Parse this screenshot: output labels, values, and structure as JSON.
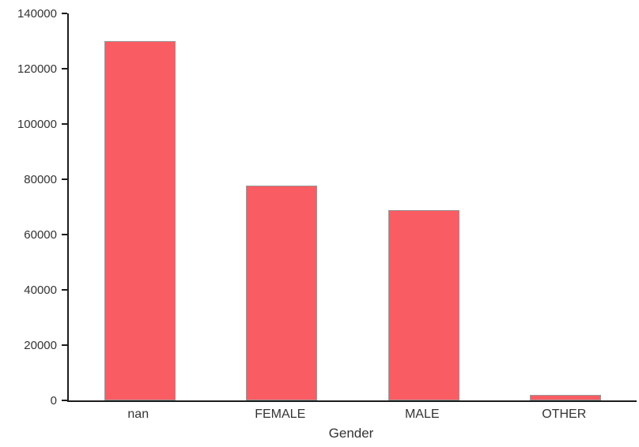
{
  "chart_data": {
    "type": "bar",
    "title": "",
    "xlabel": "Gender",
    "ylabel": "",
    "categories": [
      "nan",
      "FEMALE",
      "MALE",
      "OTHER"
    ],
    "values": [
      130000,
      77800,
      68800,
      2000
    ],
    "ylim": [
      0,
      140000
    ],
    "yticks": [
      0,
      20000,
      40000,
      60000,
      80000,
      100000,
      120000,
      140000
    ],
    "grid": false,
    "legend_position": "none",
    "bar_color": "#fa5c63",
    "bar_edge_color": "#9a9a9a",
    "axis_color": "#1c1c1c",
    "text_color": "#333333",
    "background_color": "#ffffff"
  }
}
